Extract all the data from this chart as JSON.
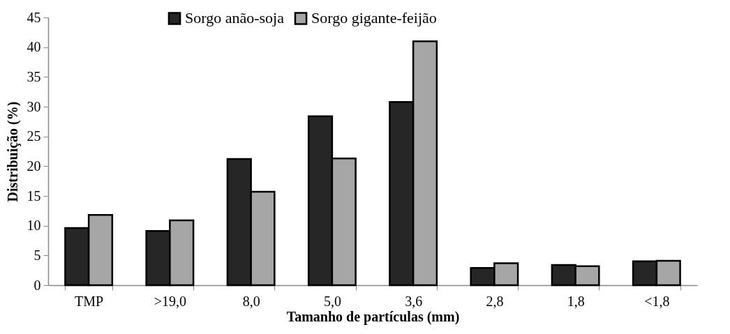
{
  "chart_data": {
    "type": "bar",
    "xlabel": "Tamanho de partículas (mm)",
    "ylabel": "Distribuição (%)",
    "categories": [
      "TMP",
      ">19,0",
      "8,0",
      "5,0",
      "3,6",
      "2,8",
      "1,8",
      "<1,8"
    ],
    "series": [
      {
        "name": "Sorgo anão-soja",
        "color": "#262626",
        "values": [
          9.6,
          9.1,
          21.2,
          28.4,
          30.8,
          2.9,
          3.4,
          4.0
        ]
      },
      {
        "name": "Sorgo gigante-feijão",
        "color": "#a6a6a6",
        "values": [
          11.8,
          10.9,
          15.7,
          21.3,
          41.0,
          3.7,
          3.2,
          4.1
        ]
      }
    ],
    "ylim": [
      0,
      45
    ],
    "yticks": [
      0,
      5,
      10,
      15,
      20,
      25,
      30,
      35,
      40,
      45
    ],
    "grid": false,
    "legend": "top"
  }
}
